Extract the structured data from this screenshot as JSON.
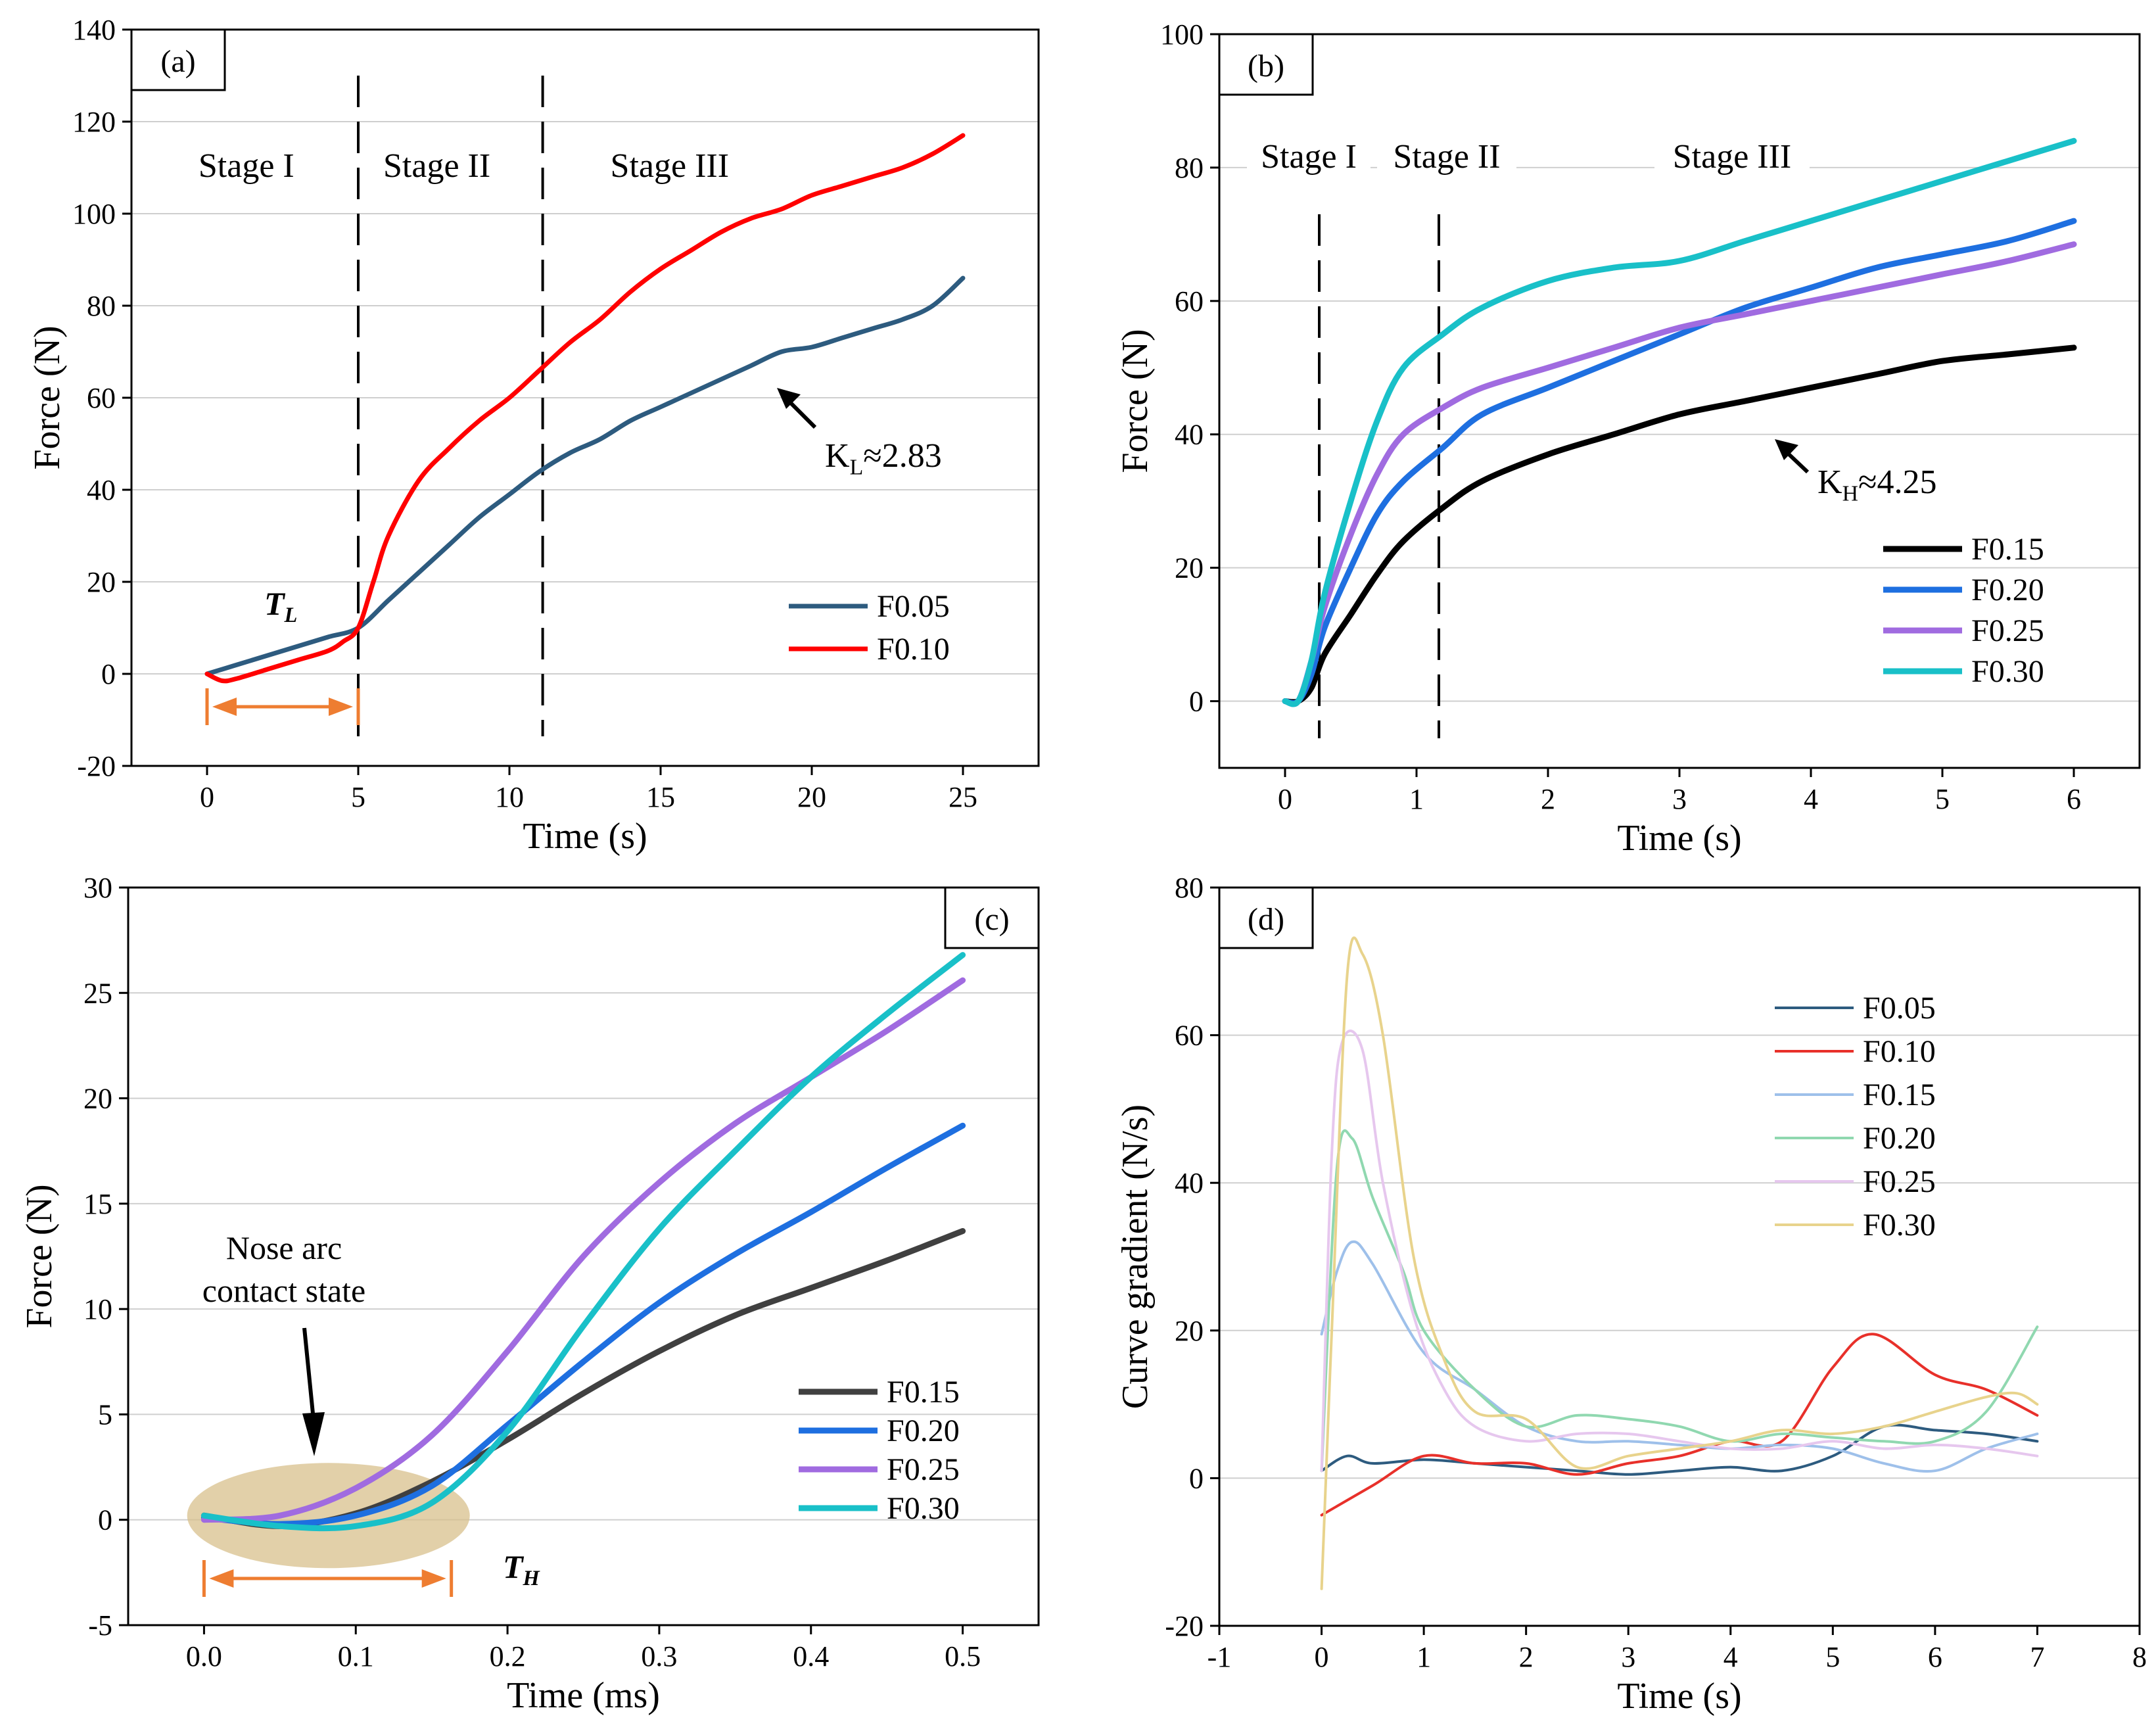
{
  "chart_data": [
    {
      "panel": "(a)",
      "type": "line",
      "xlabel": "Time (s)",
      "ylabel": "Force (N)",
      "xlim": [
        -2.5,
        27.5
      ],
      "ylim": [
        -20,
        140
      ],
      "xticks": [
        0,
        5,
        10,
        15,
        20,
        25
      ],
      "yticks": [
        -20,
        0,
        20,
        40,
        60,
        80,
        100,
        120,
        140
      ],
      "stages": [
        {
          "label": "Stage I",
          "x": 1.3,
          "y": 108
        },
        {
          "label": "Stage II",
          "x": 7.6,
          "y": 108
        },
        {
          "label": "Stage III",
          "x": 15.3,
          "y": 108
        }
      ],
      "dividers": [
        5,
        11.1
      ],
      "series": [
        {
          "name": "F0.05",
          "color": "#2d5b7f",
          "x": [
            0,
            1,
            2,
            3,
            4,
            5,
            6,
            7,
            8,
            9,
            10,
            11,
            12,
            13,
            14,
            15,
            16,
            17,
            18,
            19,
            20,
            21,
            22,
            23,
            24,
            25
          ],
          "y": [
            0,
            2,
            4,
            6,
            8,
            10,
            16,
            22,
            28,
            34,
            39,
            44,
            48,
            51,
            55,
            58,
            61,
            64,
            67,
            70,
            71,
            73,
            75,
            77,
            80,
            86
          ]
        },
        {
          "name": "F0.10",
          "color": "#ff0000",
          "x": [
            0,
            0.5,
            1,
            2,
            3,
            4,
            4.5,
            5,
            5.5,
            6,
            7,
            8,
            9,
            10,
            11,
            12,
            13,
            14,
            15,
            16,
            17,
            18,
            19,
            20,
            21,
            22,
            23,
            24,
            25
          ],
          "y": [
            0,
            -1.5,
            -1,
            1,
            3,
            5,
            7,
            10,
            20,
            30,
            42,
            49,
            55,
            60,
            66,
            72,
            77,
            83,
            88,
            92,
            96,
            99,
            101,
            104,
            106,
            108,
            110,
            113,
            117
          ]
        }
      ],
      "annotation": {
        "text": "K",
        "sub": "L",
        "tail": "≈2.83"
      },
      "interval_label": {
        "text": "T",
        "sub": "L",
        "x_from": 0,
        "x_to": 5
      }
    },
    {
      "panel": "(b)",
      "type": "line",
      "xlabel": "Time (s)",
      "ylabel": "Force (N)",
      "xlim": [
        -0.5,
        6.5
      ],
      "ylim": [
        -10,
        100
      ],
      "xticks": [
        0,
        1,
        2,
        3,
        4,
        5,
        6
      ],
      "yticks": [
        0,
        20,
        40,
        60,
        80,
        100
      ],
      "stages": [
        {
          "label": "Stage I",
          "x": 0.18,
          "y": 80
        },
        {
          "label": "Stage II",
          "x": 1.23,
          "y": 80
        },
        {
          "label": "Stage III",
          "x": 3.4,
          "y": 80
        }
      ],
      "dividers": [
        0.26,
        1.17
      ],
      "series": [
        {
          "name": "F0.15",
          "color": "#000000",
          "x": [
            0,
            0.1,
            0.2,
            0.3,
            0.5,
            0.7,
            0.9,
            1.2,
            1.5,
            2,
            2.5,
            3,
            3.5,
            4,
            4.5,
            5,
            5.5,
            6
          ],
          "y": [
            0,
            0,
            2,
            7,
            13,
            19,
            24,
            29,
            33,
            37,
            40,
            43,
            45,
            47,
            49,
            51,
            52,
            53
          ]
        },
        {
          "name": "F0.20",
          "color": "#1e6fe0",
          "x": [
            0,
            0.1,
            0.2,
            0.3,
            0.5,
            0.7,
            0.9,
            1.2,
            1.5,
            2,
            2.5,
            3,
            3.5,
            4,
            4.5,
            5,
            5.5,
            6
          ],
          "y": [
            0,
            0,
            4,
            11,
            20,
            28,
            33,
            38,
            43,
            47,
            51,
            55,
            59,
            62,
            65,
            67,
            69,
            72
          ]
        },
        {
          "name": "F0.25",
          "color": "#a06be0",
          "x": [
            0,
            0.1,
            0.2,
            0.3,
            0.5,
            0.7,
            0.9,
            1.2,
            1.5,
            2,
            2.5,
            3,
            3.5,
            4,
            4.5,
            5,
            5.5,
            6
          ],
          "y": [
            0,
            0,
            6,
            14,
            25,
            34,
            40,
            44,
            47,
            50,
            53,
            56,
            58,
            60,
            62,
            64,
            66,
            68.5
          ]
        },
        {
          "name": "F0.30",
          "color": "#19c0c8",
          "x": [
            0,
            0.1,
            0.2,
            0.3,
            0.5,
            0.7,
            0.9,
            1.2,
            1.5,
            2,
            2.5,
            3,
            3.5,
            4,
            4.5,
            5,
            5.5,
            6
          ],
          "y": [
            0,
            0,
            6,
            16,
            30,
            42,
            50,
            55,
            59,
            63,
            65,
            66,
            69,
            72,
            75,
            78,
            81,
            84
          ]
        }
      ],
      "annotation": {
        "text": "K",
        "sub": "H",
        "tail": "≈4.25"
      }
    },
    {
      "panel": "(c)",
      "type": "line",
      "xlabel": "Time (ms)",
      "ylabel": "Force (N)",
      "xlim": [
        -0.05,
        0.55
      ],
      "ylim": [
        -5,
        30
      ],
      "xticks": [
        0.0,
        0.1,
        0.2,
        0.3,
        0.4,
        0.5
      ],
      "yticks": [
        -5,
        0,
        5,
        10,
        15,
        20,
        25,
        30
      ],
      "series": [
        {
          "name": "F0.15",
          "color": "#404040",
          "x": [
            0,
            0.05,
            0.1,
            0.15,
            0.2,
            0.25,
            0.3,
            0.35,
            0.4,
            0.45,
            0.5
          ],
          "y": [
            0.2,
            -0.3,
            0.3,
            1.8,
            3.8,
            6,
            8,
            9.7,
            11,
            12.3,
            13.7
          ]
        },
        {
          "name": "F0.20",
          "color": "#1e6fe0",
          "x": [
            0,
            0.05,
            0.1,
            0.15,
            0.2,
            0.25,
            0.3,
            0.35,
            0.4,
            0.45,
            0.5
          ],
          "y": [
            0.1,
            -0.2,
            0.2,
            1.6,
            4.5,
            7.5,
            10.3,
            12.6,
            14.6,
            16.7,
            18.7
          ]
        },
        {
          "name": "F0.25",
          "color": "#a06be0",
          "x": [
            0,
            0.05,
            0.1,
            0.15,
            0.2,
            0.25,
            0.3,
            0.35,
            0.4,
            0.45,
            0.5
          ],
          "y": [
            0,
            0.2,
            1.5,
            4,
            8,
            12.5,
            16,
            18.8,
            21,
            23.2,
            25.6
          ]
        },
        {
          "name": "F0.30",
          "color": "#19c0c8",
          "x": [
            0,
            0.05,
            0.1,
            0.15,
            0.2,
            0.25,
            0.3,
            0.35,
            0.4,
            0.45,
            0.5
          ],
          "y": [
            0.2,
            -0.3,
            -0.3,
            0.8,
            4.2,
            9.2,
            13.8,
            17.5,
            21,
            24,
            26.8
          ]
        }
      ],
      "annotation": {
        "line1": "Nose arc",
        "line2": "contact state"
      },
      "interval_label": {
        "text": "T",
        "sub": "H",
        "x_from": 0,
        "x_to": 0.163
      }
    },
    {
      "panel": "(d)",
      "type": "line",
      "xlabel": "Time (s)",
      "ylabel": "Curve gradient (N/s)",
      "xlim": [
        -1,
        8
      ],
      "ylim": [
        -20,
        80
      ],
      "xticks": [
        -1,
        0,
        1,
        2,
        3,
        4,
        5,
        6,
        7,
        8
      ],
      "yticks": [
        -20,
        0,
        20,
        40,
        60,
        80
      ],
      "series": [
        {
          "name": "F0.05",
          "color": "#2d5b7f",
          "x": [
            0,
            0.25,
            0.5,
            1,
            1.5,
            2,
            2.5,
            3,
            3.5,
            4,
            4.5,
            5,
            5.5,
            6,
            6.5,
            7
          ],
          "y": [
            1,
            3,
            2,
            2.5,
            2,
            1.5,
            1,
            0.5,
            1,
            1.5,
            1,
            3,
            7,
            6.5,
            6,
            5
          ]
        },
        {
          "name": "F0.10",
          "color": "#e8302a",
          "x": [
            0,
            0.5,
            1,
            1.5,
            2,
            2.5,
            3,
            3.5,
            4,
            4.5,
            5,
            5.4,
            6,
            6.5,
            7
          ],
          "y": [
            -5,
            -1,
            3,
            2,
            2,
            0.5,
            2,
            3,
            5,
            5,
            15,
            19.5,
            14,
            12,
            8.5
          ]
        },
        {
          "name": "F0.15",
          "color": "#9ec0ea",
          "x": [
            0,
            0.15,
            0.3,
            0.5,
            1,
            1.5,
            2,
            2.5,
            3,
            3.5,
            4,
            4.5,
            5,
            5.5,
            6,
            6.5,
            7
          ],
          "y": [
            19.5,
            28,
            32,
            29,
            17,
            12,
            7,
            5,
            5,
            4.5,
            4,
            4.5,
            4,
            2,
            1,
            4,
            6
          ]
        },
        {
          "name": "F0.20",
          "color": "#90d8b0",
          "x": [
            0,
            0.15,
            0.3,
            0.5,
            0.8,
            1,
            1.5,
            2,
            2.5,
            3,
            3.5,
            4,
            4.5,
            5,
            5.5,
            6,
            6.5,
            7
          ],
          "y": [
            1,
            42,
            46,
            38,
            28,
            20,
            12,
            7,
            8.5,
            8,
            7,
            5,
            6,
            5.5,
            5,
            5,
            9,
            20.5
          ]
        },
        {
          "name": "F0.25",
          "color": "#e6c7ee",
          "x": [
            0,
            0.1,
            0.2,
            0.4,
            0.6,
            0.9,
            1.2,
            1.5,
            2,
            2.5,
            3,
            3.5,
            4,
            4.5,
            5,
            5.5,
            6,
            6.5,
            7
          ],
          "y": [
            1,
            44,
            59,
            58,
            40,
            22,
            12,
            7,
            5,
            6,
            6,
            5,
            4,
            4,
            5,
            4,
            4.5,
            4,
            3
          ]
        },
        {
          "name": "F0.30",
          "color": "#e8d38c",
          "x": [
            0,
            0.1,
            0.25,
            0.4,
            0.6,
            0.9,
            1.2,
            1.5,
            2,
            2.5,
            3,
            3.5,
            4,
            4.5,
            5,
            5.5,
            6,
            6.5,
            6.8,
            7
          ],
          "y": [
            -15,
            20,
            68,
            71,
            60,
            30,
            16,
            9,
            8,
            1.5,
            3,
            4,
            5,
            6.5,
            6,
            7,
            9,
            11,
            11.5,
            10
          ]
        }
      ]
    }
  ]
}
